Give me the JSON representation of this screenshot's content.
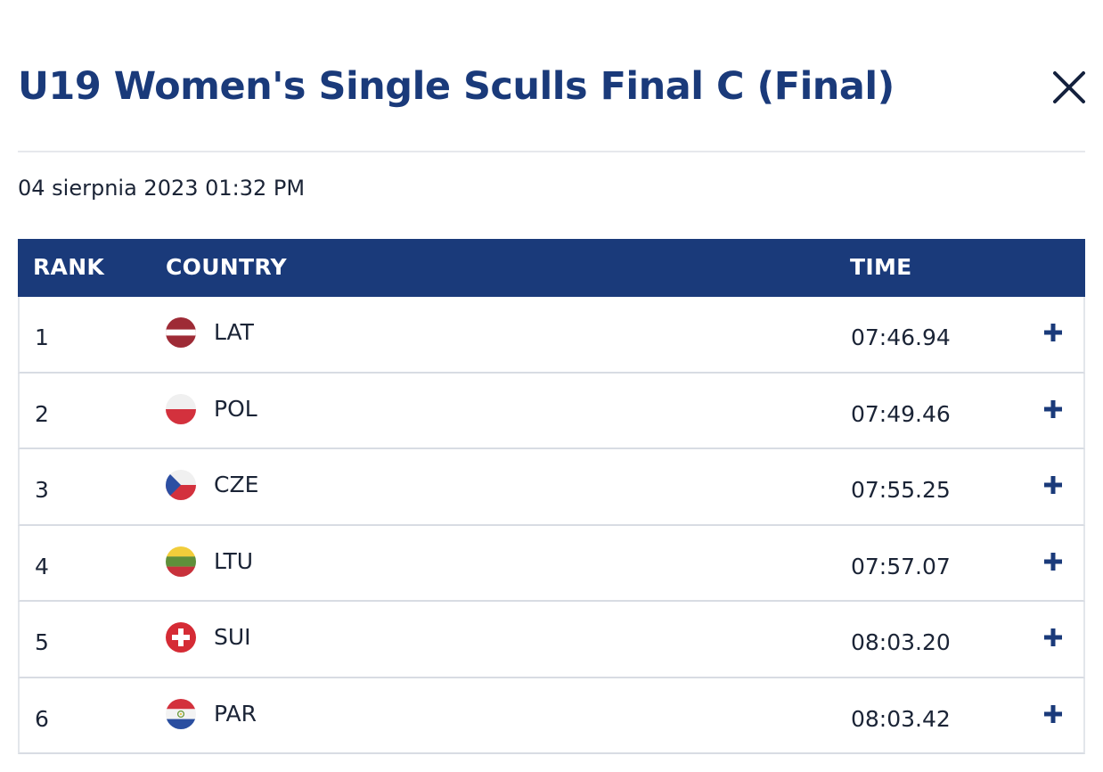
{
  "header": {
    "title": "U19 Women's Single Sculls Final C (Final)",
    "close_icon": "close-icon"
  },
  "date": "04 sierpnia 2023 01:32 PM",
  "table": {
    "columns": {
      "rank": "RANK",
      "country": "COUNTRY",
      "time": "TIME"
    },
    "rows": [
      {
        "rank": "1",
        "country": "LAT",
        "time": "07:46.94",
        "flag": "flag-lat-icon",
        "expand_icon": "plus-icon"
      },
      {
        "rank": "2",
        "country": "POL",
        "time": "07:49.46",
        "flag": "flag-pol-icon",
        "expand_icon": "plus-icon"
      },
      {
        "rank": "3",
        "country": "CZE",
        "time": "07:55.25",
        "flag": "flag-cze-icon",
        "expand_icon": "plus-icon"
      },
      {
        "rank": "4",
        "country": "LTU",
        "time": "07:57.07",
        "flag": "flag-ltu-icon",
        "expand_icon": "plus-icon"
      },
      {
        "rank": "5",
        "country": "SUI",
        "time": "08:03.20",
        "flag": "flag-sui-icon",
        "expand_icon": "plus-icon"
      },
      {
        "rank": "6",
        "country": "PAR",
        "time": "08:03.42",
        "flag": "flag-par-icon",
        "expand_icon": "plus-icon"
      }
    ]
  },
  "colors": {
    "brand_navy": "#1a3a7a",
    "text": "#1b2436",
    "border": "#d8dce3"
  }
}
